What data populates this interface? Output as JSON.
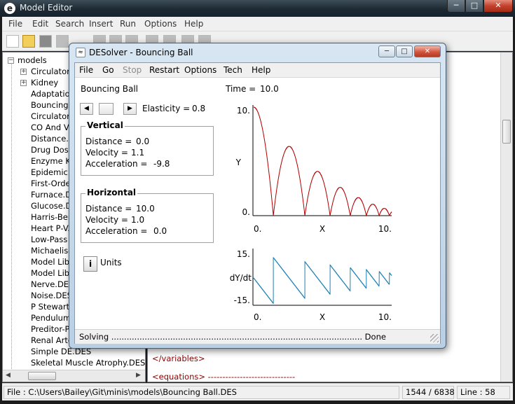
{
  "outer": {
    "title": "Model Editor",
    "icon_letter": "e",
    "menu": [
      "File",
      "Edit",
      "Search",
      "Insert",
      "Run",
      "Options",
      "Help"
    ]
  },
  "tree": {
    "root": "models",
    "items": [
      "Circulatory",
      "Kidney",
      "Adaptation.",
      "Bouncing B",
      "Circulatory",
      "CO And VR",
      "Distance.D",
      "Drug Dosing",
      "Enzyme Kin",
      "Epidemic.D",
      "First-Order",
      "Furnace.DE",
      "Glucose.DE",
      "Harris-Bene",
      "Heart P-V.D",
      "Low-Pass F",
      "Michaelis-M",
      "Model Libra",
      "Model Libra",
      "Nerve.DES",
      "Noise.DES",
      "P Stewart p",
      "Pendulum.D",
      "Preditor-Pre",
      "Renal Arter",
      "Simple DE.DES",
      "Skeletal Muscle Atrophy.DES"
    ]
  },
  "editor": {
    "lines": [
      "</variables>",
      "<equations> ------------------------------"
    ]
  },
  "status": {
    "file": "File : C:\\Users\\Bailey\\Git\\minis\\models\\Bouncing Ball.DES",
    "position": "1544 / 6838",
    "line": "Line : 58"
  },
  "dialog": {
    "title": "DESolver - Bouncing Ball",
    "menu": [
      "File",
      "Go",
      "Stop",
      "Restart",
      "Options",
      "Tech",
      "Help"
    ],
    "model_name": "Bouncing Ball",
    "time_label": "Time =",
    "time_value": "10.0",
    "elasticity_label": "Elasticity =",
    "elasticity_value": "0.8",
    "vertical": {
      "title": "Vertical",
      "distance_label": "Distance =",
      "distance_value": "0.0",
      "velocity_label": "Velocity =",
      "velocity_value": "1.1",
      "acceleration_label": "Acceleration =",
      "acceleration_value": "-9.8"
    },
    "horizontal": {
      "title": "Horizontal",
      "distance_label": "Distance =",
      "distance_value": "10.0",
      "velocity_label": "Velocity =",
      "velocity_value": "1.0",
      "acceleration_label": "Acceleration =",
      "acceleration_value": "0.0"
    },
    "info_button": "i",
    "units_label": "Units",
    "status_text": "Solving .................................................................................................. Done"
  },
  "chart_data": [
    {
      "type": "line",
      "ylabel": "Y",
      "xlabel": "X",
      "xlim": [
        0,
        10
      ],
      "ylim": [
        0,
        10
      ],
      "x_ticks": [
        "0.",
        "10."
      ],
      "y_ticks": [
        "0.",
        "10."
      ],
      "color": "#b30000",
      "model": "bouncing ball, g = 9.8, restitution 0.8, y0 = 10, horizontal velocity 1.0"
    },
    {
      "type": "line",
      "ylabel": "dY/dt",
      "xlabel": "X",
      "xlim": [
        0,
        10
      ],
      "ylim": [
        -15,
        15
      ],
      "x_ticks": [
        "0.",
        "10."
      ],
      "y_ticks": [
        "15.",
        "-15."
      ],
      "color": "#1a7fb5"
    }
  ]
}
